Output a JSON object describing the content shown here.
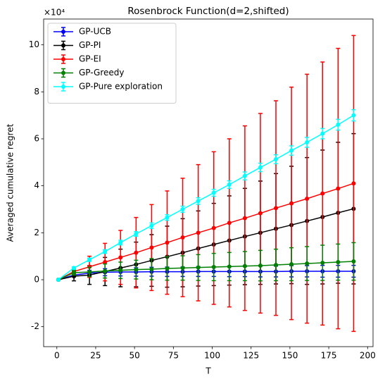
{
  "chart_data": {
    "type": "line",
    "title": "Rosenbrock Function(d=2,shifted)",
    "x_label": "T",
    "y_label": "Averaged cumulative regret",
    "y_offset_label": "×10⁴",
    "x": [
      1,
      11,
      21,
      31,
      41,
      51,
      61,
      71,
      81,
      91,
      101,
      111,
      121,
      131,
      141,
      151,
      161,
      171,
      181,
      191
    ],
    "series": [
      {
        "name": "GP-UCB",
        "color": "#0000ff",
        "values": [
          0,
          0.2,
          0.28,
          0.32,
          0.33,
          0.33,
          0.34,
          0.34,
          0.34,
          0.35,
          0.35,
          0.35,
          0.35,
          0.35,
          0.35,
          0.36,
          0.36,
          0.36,
          0.36,
          0.36
        ],
        "errors": [
          0,
          0.08,
          0.12,
          0.15,
          0.17,
          0.18,
          0.19,
          0.2,
          0.2,
          0.21,
          0.21,
          0.22,
          0.22,
          0.23,
          0.23,
          0.24,
          0.24,
          0.25,
          0.25,
          0.25
        ]
      },
      {
        "name": "GP-PI",
        "color": "#000000",
        "values": [
          0,
          0.15,
          0.2,
          0.35,
          0.5,
          0.65,
          0.82,
          0.98,
          1.15,
          1.33,
          1.5,
          1.67,
          1.84,
          2.0,
          2.17,
          2.33,
          2.5,
          2.67,
          2.85,
          3.02
        ],
        "errors": [
          0,
          0.2,
          0.4,
          0.6,
          0.8,
          0.95,
          1.1,
          1.3,
          1.45,
          1.6,
          1.75,
          1.9,
          2.05,
          2.2,
          2.35,
          2.5,
          2.7,
          2.85,
          3.0,
          3.2
        ]
      },
      {
        "name": "GP-EI",
        "color": "#ff0000",
        "values": [
          0,
          0.35,
          0.55,
          0.75,
          0.95,
          1.15,
          1.37,
          1.58,
          1.8,
          2.0,
          2.2,
          2.42,
          2.62,
          2.83,
          3.05,
          3.25,
          3.45,
          3.67,
          3.88,
          4.1
        ],
        "errors": [
          0,
          0.1,
          0.45,
          0.8,
          1.15,
          1.5,
          1.83,
          2.2,
          2.52,
          2.9,
          3.25,
          3.58,
          3.93,
          4.25,
          4.57,
          4.95,
          5.3,
          5.6,
          5.97,
          6.3
        ]
      },
      {
        "name": "GP-Greedy",
        "color": "#008000",
        "values": [
          0,
          0.3,
          0.33,
          0.37,
          0.4,
          0.43,
          0.45,
          0.48,
          0.5,
          0.52,
          0.54,
          0.56,
          0.58,
          0.6,
          0.63,
          0.66,
          0.69,
          0.72,
          0.75,
          0.78
        ],
        "errors": [
          0,
          0.1,
          0.2,
          0.3,
          0.35,
          0.4,
          0.45,
          0.5,
          0.52,
          0.55,
          0.58,
          0.6,
          0.62,
          0.65,
          0.67,
          0.7,
          0.72,
          0.75,
          0.77,
          0.8
        ]
      },
      {
        "name": "GP-Pure exploration",
        "color": "#00ffff",
        "values": [
          0,
          0.5,
          0.85,
          1.2,
          1.58,
          1.95,
          2.3,
          2.65,
          3.0,
          3.35,
          3.7,
          4.05,
          4.42,
          4.78,
          5.13,
          5.5,
          5.85,
          6.22,
          6.6,
          7.0
        ],
        "errors": [
          0,
          0.05,
          0.07,
          0.08,
          0.1,
          0.1,
          0.12,
          0.12,
          0.13,
          0.14,
          0.15,
          0.16,
          0.17,
          0.18,
          0.19,
          0.2,
          0.21,
          0.22,
          0.23,
          0.24
        ]
      }
    ],
    "xlim": [
      -8.5,
      203.5
    ],
    "xticks": [
      0,
      25,
      50,
      75,
      100,
      125,
      150,
      175,
      200
    ],
    "ylim": [
      -2.85,
      11.1
    ],
    "yticks": [
      -2,
      0,
      2,
      4,
      6,
      8,
      10
    ],
    "legend": "upper left",
    "grid": false
  }
}
